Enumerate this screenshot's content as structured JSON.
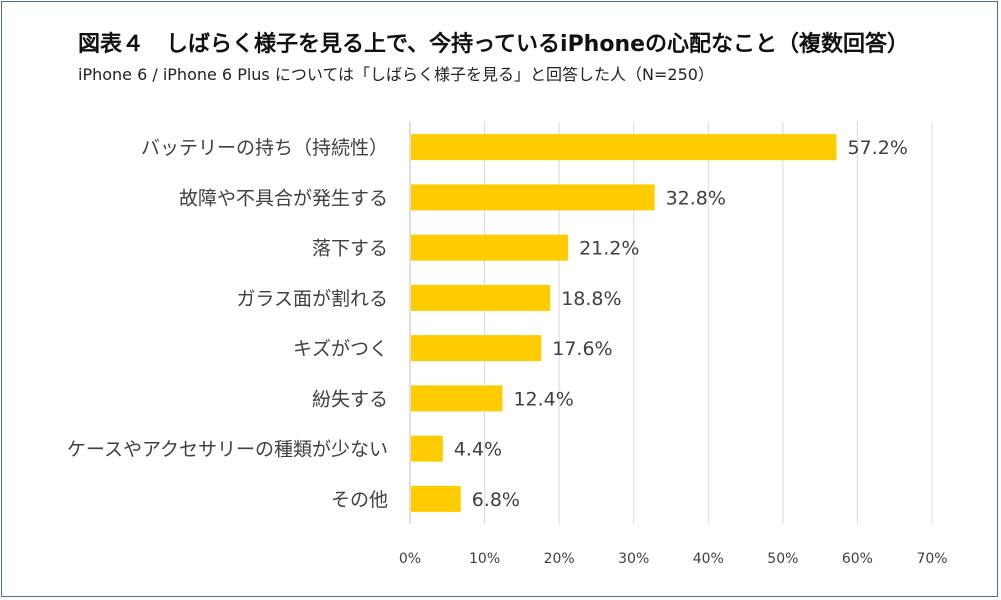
{
  "title": "図表４　しばらく様子を見る上で、今持っているiPhoneの心配なこと（複数回答）",
  "subtitle": "iPhone 6 / iPhone 6 Plus については「しばらく様子を見る」と回答した人（N=250）",
  "colors": {
    "bar": "#FFCC00",
    "border": "#4A6F9C",
    "grid": "#D9D9D9"
  },
  "chart_data": {
    "type": "bar",
    "orientation": "horizontal",
    "categories": [
      "バッテリーの持ち（持続性）",
      "故障や不具合が発生する",
      "落下する",
      "ガラス面が割れる",
      "キズがつく",
      "紛失する",
      "ケースやアクセサリーの種類が少ない",
      "その他"
    ],
    "values": [
      57.2,
      32.8,
      21.2,
      18.8,
      17.6,
      12.4,
      4.4,
      6.8
    ],
    "value_labels": [
      "57.2%",
      "32.8%",
      "21.2%",
      "18.8%",
      "17.6%",
      "12.4%",
      "4.4%",
      "6.8%"
    ],
    "xlim": [
      0,
      70
    ],
    "x_ticks": [
      0,
      10,
      20,
      30,
      40,
      50,
      60,
      70
    ],
    "x_tick_labels": [
      "0%",
      "10%",
      "20%",
      "30%",
      "40%",
      "50%",
      "60%",
      "70%"
    ],
    "grid": true,
    "legend": "none"
  }
}
